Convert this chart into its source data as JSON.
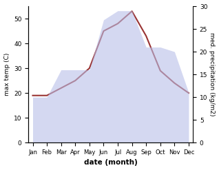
{
  "months": [
    "Jan",
    "Feb",
    "Mar",
    "Apr",
    "May",
    "Jun",
    "Jul",
    "Aug",
    "Sep",
    "Oct",
    "Nov",
    "Dec"
  ],
  "temp_max": [
    19,
    19,
    22,
    25,
    30,
    45,
    48,
    53,
    43,
    29,
    24,
    20
  ],
  "precipitation": [
    10,
    10,
    16,
    16,
    16,
    27,
    29,
    29,
    21,
    21,
    20,
    11
  ],
  "temp_color": "#993333",
  "precip_fill_color": "#b8bfe8",
  "xlabel": "date (month)",
  "ylabel_left": "max temp (C)",
  "ylabel_right": "med. precipitation (kg/m2)",
  "ylim_left": [
    0,
    55
  ],
  "ylim_right": [
    0,
    30
  ],
  "yticks_left": [
    0,
    10,
    20,
    30,
    40,
    50
  ],
  "yticks_right": [
    0,
    5,
    10,
    15,
    20,
    25,
    30
  ],
  "bg_color": "#ffffff"
}
